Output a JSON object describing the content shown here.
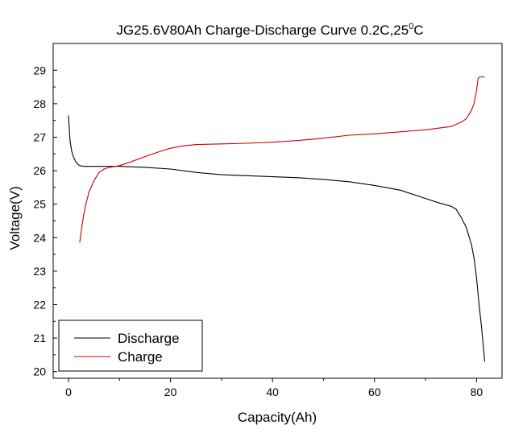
{
  "chart_data": {
    "type": "line",
    "title": "JG25.6V80Ah Charge-Discharge Curve  0.2C,25",
    "title_sup": "0",
    "title_suffix": "C",
    "xlabel": "Capacity(Ah)",
    "ylabel": "Voltage(V)",
    "xlim": [
      -3,
      85
    ],
    "ylim": [
      19.8,
      29.8
    ],
    "xticks": [
      0,
      20,
      40,
      60,
      80
    ],
    "yticks": [
      20,
      21,
      22,
      23,
      24,
      25,
      26,
      27,
      28,
      29
    ],
    "grid": false,
    "legend_position": "bottom-left",
    "series": [
      {
        "name": "Discharge",
        "color": "#000000",
        "x": [
          0,
          0.3,
          0.6,
          1,
          1.5,
          2,
          2.5,
          3,
          5,
          10,
          15,
          20,
          25,
          30,
          35,
          40,
          45,
          50,
          55,
          60,
          65,
          70,
          73,
          75,
          76,
          77,
          78,
          79,
          79.5,
          80,
          80.5,
          81,
          81.3,
          81.6
        ],
        "y": [
          27.65,
          26.9,
          26.6,
          26.4,
          26.25,
          26.17,
          26.14,
          26.13,
          26.13,
          26.13,
          26.1,
          26.05,
          25.95,
          25.88,
          25.85,
          25.82,
          25.79,
          25.74,
          25.67,
          25.56,
          25.42,
          25.17,
          25.02,
          24.94,
          24.85,
          24.6,
          24.3,
          23.8,
          23.4,
          22.8,
          22.0,
          21.3,
          20.8,
          20.3
        ]
      },
      {
        "name": "Charge",
        "color": "#cc0000",
        "x": [
          2.2,
          2.6,
          3,
          3.5,
          4,
          5,
          6,
          7,
          8,
          10,
          12,
          15,
          18,
          20,
          22,
          25,
          30,
          35,
          40,
          45,
          50,
          55,
          60,
          65,
          70,
          75,
          77,
          78,
          79,
          79.5,
          80,
          80.3,
          80.6,
          81,
          81.6
        ],
        "y": [
          23.85,
          24.3,
          24.7,
          25.05,
          25.35,
          25.7,
          25.95,
          26.05,
          26.1,
          26.15,
          26.25,
          26.42,
          26.58,
          26.67,
          26.73,
          26.78,
          26.8,
          26.82,
          26.85,
          26.9,
          26.97,
          27.06,
          27.1,
          27.16,
          27.22,
          27.32,
          27.45,
          27.55,
          27.8,
          28.0,
          28.4,
          28.75,
          28.8,
          28.8,
          28.8
        ]
      }
    ]
  }
}
